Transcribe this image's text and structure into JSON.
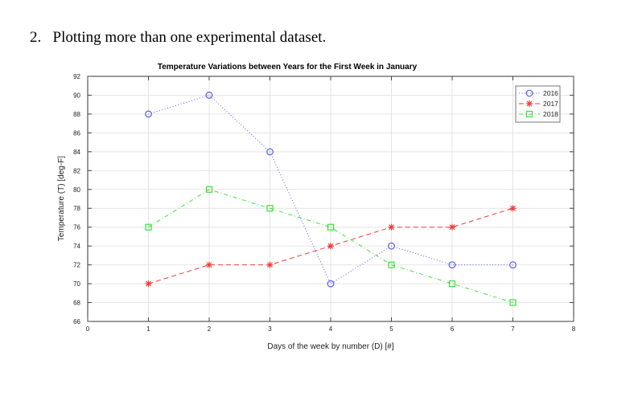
{
  "document": {
    "heading": "2.   Plotting more than one experimental dataset."
  },
  "chart_data": {
    "type": "line",
    "title": "Temperature Variations between Years for the First Week in January",
    "xlabel": "Days of the week by number (D) [#]",
    "ylabel": "Temperature (T) [deg-F]",
    "xlim": [
      0,
      8
    ],
    "ylim": [
      66,
      92
    ],
    "xticks": [
      0,
      1,
      2,
      3,
      4,
      5,
      6,
      7,
      8
    ],
    "yticks": [
      66,
      68,
      70,
      72,
      74,
      76,
      78,
      80,
      82,
      84,
      86,
      88,
      90,
      92
    ],
    "grid": true,
    "legend_position": "upper right",
    "x": [
      1,
      2,
      3,
      4,
      5,
      6,
      7
    ],
    "series": [
      {
        "name": "2016",
        "values": [
          88,
          90,
          84,
          70,
          74,
          72,
          72
        ],
        "color": "#5b5bf0",
        "marker": "circle",
        "linestyle": "dotted"
      },
      {
        "name": "2017",
        "values": [
          70,
          72,
          72,
          74,
          76,
          76,
          78
        ],
        "color": "#f03a3a",
        "marker": "asterisk",
        "linestyle": "dashed"
      },
      {
        "name": "2018",
        "values": [
          76,
          80,
          78,
          76,
          72,
          70,
          68
        ],
        "color": "#3ee03e",
        "marker": "square",
        "linestyle": "dash-dot"
      }
    ]
  }
}
